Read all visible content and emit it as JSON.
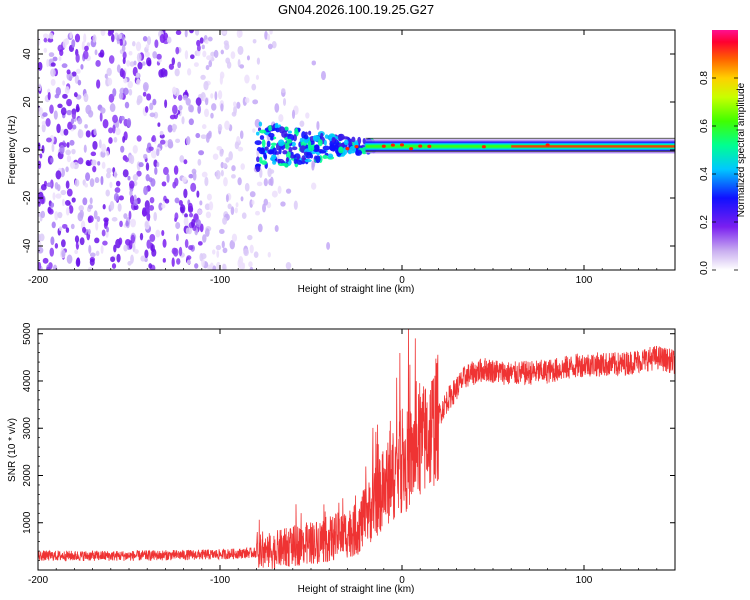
{
  "title": "GN04.2026.100.19.25.G27",
  "chart_data": [
    {
      "type": "heatmap",
      "xlabel": "Height of straight line (km)",
      "ylabel": "Frequency (Hz)",
      "xlim": [
        -200,
        150
      ],
      "ylim": [
        -50,
        50
      ],
      "x_ticks": [
        "-200",
        "-100",
        "0",
        "100"
      ],
      "y_ticks": [
        "40",
        "20",
        "0",
        "-20",
        "-40"
      ],
      "colorbar": {
        "label": "Normalized spectral amplitude",
        "range": [
          0.0,
          1.0
        ],
        "ticks": [
          "0.0",
          "0.2",
          "0.4",
          "0.6",
          "0.8"
        ]
      },
      "features": {
        "noise_region_x": [
          -200,
          -75
        ],
        "signal_line_frequency_hz": 1.5,
        "signal_start_x": -80,
        "signal_stabilizes_x": -20
      }
    },
    {
      "type": "line",
      "xlabel": "Height of straight line (km)",
      "ylabel": "SNR (10 * v/v)",
      "xlim": [
        -200,
        150
      ],
      "ylim": [
        0,
        5100
      ],
      "x_ticks": [
        "-200",
        "-100",
        "0",
        "100"
      ],
      "y_ticks": [
        "5000",
        "4000",
        "3000",
        "2000",
        "1000"
      ],
      "line_color": "#ef3333",
      "envelope": {
        "x": [
          -200,
          -150,
          -100,
          -75,
          -60,
          -40,
          -25,
          -15,
          -5,
          5,
          15,
          25,
          35,
          45,
          60,
          80,
          100,
          120,
          140,
          150
        ],
        "mean": [
          300,
          300,
          330,
          380,
          500,
          650,
          850,
          1400,
          2000,
          2400,
          2900,
          3600,
          4100,
          4250,
          4150,
          4200,
          4350,
          4350,
          4500,
          4400
        ]
      }
    }
  ]
}
